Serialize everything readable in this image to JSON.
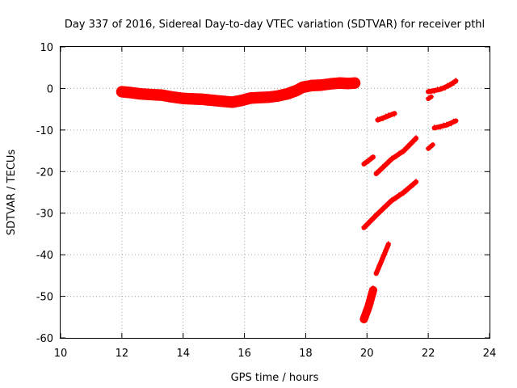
{
  "chart_data": {
    "type": "scatter",
    "title": "Day 337 of 2016, Sidereal Day-to-day VTEC variation (SDTVAR) for receiver pthl",
    "xlabel": "GPS time / hours",
    "ylabel": "SDTVAR / TECUs",
    "xlim": [
      10,
      24
    ],
    "ylim": [
      -60,
      10
    ],
    "x_ticks": [
      "10",
      "12",
      "14",
      "16",
      "18",
      "20",
      "22",
      "24"
    ],
    "y_ticks": [
      "10",
      "0",
      "-10",
      "-20",
      "-30",
      "-40",
      "-50",
      "-60"
    ],
    "grid": true,
    "marker": "+",
    "color": "#ff0000",
    "series": [
      {
        "name": "main-track",
        "band": 2.2,
        "points": [
          [
            12.0,
            -0.8
          ],
          [
            12.3,
            -1.0
          ],
          [
            12.6,
            -1.3
          ],
          [
            13.0,
            -1.5
          ],
          [
            13.3,
            -1.6
          ],
          [
            13.6,
            -2.0
          ],
          [
            14.0,
            -2.4
          ],
          [
            14.3,
            -2.5
          ],
          [
            14.6,
            -2.6
          ],
          [
            15.0,
            -2.9
          ],
          [
            15.3,
            -3.1
          ],
          [
            15.6,
            -3.3
          ],
          [
            15.9,
            -2.9
          ],
          [
            16.2,
            -2.3
          ],
          [
            16.5,
            -2.2
          ],
          [
            16.8,
            -2.1
          ],
          [
            17.1,
            -1.8
          ],
          [
            17.4,
            -1.3
          ],
          [
            17.7,
            -0.5
          ],
          [
            17.9,
            0.3
          ],
          [
            18.2,
            0.7
          ],
          [
            18.5,
            0.8
          ],
          [
            18.8,
            1.1
          ],
          [
            19.1,
            1.3
          ],
          [
            19.4,
            1.2
          ],
          [
            19.6,
            1.3
          ]
        ]
      },
      {
        "name": "arc-a",
        "band": 0.6,
        "points": [
          [
            19.9,
            -18.2
          ],
          [
            20.2,
            -16.5
          ]
        ]
      },
      {
        "name": "arc-b",
        "band": 0.6,
        "points": [
          [
            20.3,
            -20.5
          ],
          [
            20.8,
            -17.0
          ],
          [
            21.2,
            -15.0
          ],
          [
            21.6,
            -12.0
          ]
        ]
      },
      {
        "name": "arc-c",
        "band": 0.6,
        "points": [
          [
            20.35,
            -7.6
          ],
          [
            20.7,
            -6.6
          ],
          [
            20.9,
            -6.0
          ]
        ]
      },
      {
        "name": "arc-d",
        "band": 0.6,
        "points": [
          [
            19.9,
            -33.5
          ],
          [
            20.3,
            -30.5
          ],
          [
            20.8,
            -27.0
          ],
          [
            21.2,
            -25.0
          ],
          [
            21.6,
            -22.5
          ]
        ]
      },
      {
        "name": "arc-e",
        "band": 0.6,
        "points": [
          [
            20.3,
            -44.5
          ],
          [
            20.5,
            -41.0
          ],
          [
            20.7,
            -37.5
          ]
        ]
      },
      {
        "name": "arc-f",
        "band": 1.4,
        "points": [
          [
            19.9,
            -55.5
          ],
          [
            20.05,
            -52.5
          ],
          [
            20.2,
            -48.5
          ]
        ]
      },
      {
        "name": "arc-g",
        "band": 0.5,
        "points": [
          [
            22.0,
            -14.5
          ],
          [
            22.15,
            -13.5
          ]
        ]
      },
      {
        "name": "arc-h",
        "band": 0.5,
        "points": [
          [
            22.0,
            -2.5
          ],
          [
            22.1,
            -2.0
          ]
        ]
      },
      {
        "name": "arc-i",
        "band": 0.6,
        "points": [
          [
            22.0,
            -0.8
          ],
          [
            22.4,
            -0.2
          ],
          [
            22.7,
            0.8
          ],
          [
            22.9,
            1.8
          ]
        ]
      },
      {
        "name": "arc-j",
        "band": 0.6,
        "points": [
          [
            22.2,
            -9.5
          ],
          [
            22.6,
            -8.8
          ],
          [
            22.9,
            -7.8
          ]
        ]
      }
    ]
  }
}
